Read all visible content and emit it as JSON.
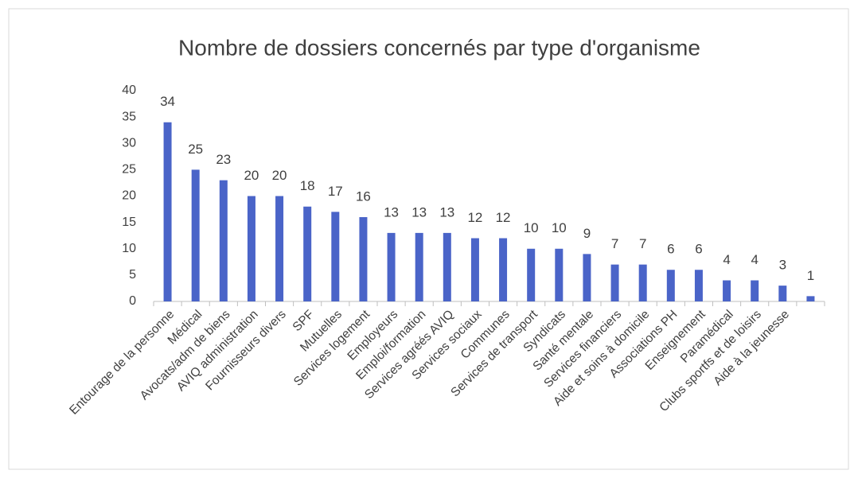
{
  "chart_data": {
    "type": "bar",
    "title": "Nombre de dossiers concernés par type d'organisme",
    "categories": [
      "Entourage de la personne",
      "Médical",
      "Avocats/adm de biens",
      "AVIQ administration",
      "Fournisseurs divers",
      "SPF",
      "Mutuelles",
      "Services logement",
      "Employeurs",
      "Emploi/formation",
      "Services agréés AVIQ",
      "Services sociaux",
      "Communes",
      "Services de transport",
      "Syndicats",
      "Santé mentale",
      "Services financiers",
      "Aide et soins à domicile",
      "Associations PH",
      "Enseignement",
      "Paramédical",
      "Clubs sportfs et de loisirs",
      "Aide à la jeunesse",
      null
    ],
    "values": [
      34,
      25,
      23,
      20,
      20,
      18,
      17,
      16,
      13,
      13,
      13,
      12,
      12,
      10,
      10,
      9,
      7,
      7,
      6,
      6,
      4,
      4,
      3,
      1
    ],
    "color": "#4a64c8",
    "ylim": [
      0,
      40
    ],
    "yticks": [
      0,
      5,
      10,
      15,
      20,
      25,
      30,
      35,
      40
    ],
    "grid": false
  }
}
